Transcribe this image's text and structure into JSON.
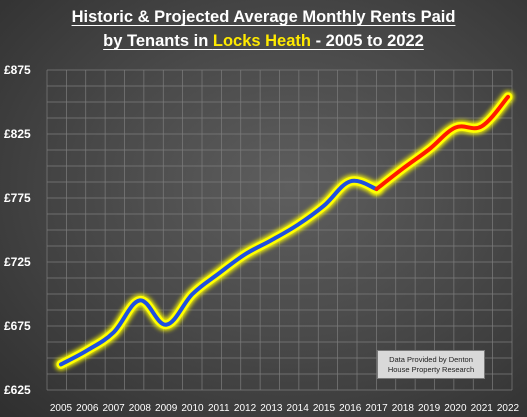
{
  "title": {
    "line1": "Historic & Projected Average Monthly Rents Paid",
    "line2_prefix": "by Tenants in ",
    "line2_highlight": "Locks Heath",
    "line2_suffix": " - 2005 to 2022"
  },
  "annotation": {
    "line1": "Data Provided by Denton",
    "line2": "House Property Research"
  },
  "colors": {
    "historic": "#1f4fe0",
    "projected": "#ff1a00",
    "glow": "#ffff00",
    "grid": "#7d7d7d"
  },
  "chart_data": {
    "type": "line",
    "title": "Historic & Projected Average Monthly Rents Paid by Tenants in Locks Heath - 2005 to 2022",
    "xlabel": "",
    "ylabel": "",
    "ylim": [
      625,
      875
    ],
    "yticks": [
      625,
      675,
      725,
      775,
      825,
      875
    ],
    "ytick_labels": [
      "£625",
      "£675",
      "£725",
      "£775",
      "£825",
      "£875"
    ],
    "grid": true,
    "x": [
      2005,
      2006,
      2007,
      2008,
      2009,
      2010,
      2011,
      2012,
      2013,
      2014,
      2015,
      2016,
      2017,
      2018,
      2019,
      2020,
      2021,
      2022
    ],
    "series": [
      {
        "name": "",
        "style": "historic",
        "x": [
          2005,
          2006,
          2007,
          2008,
          2009,
          2010,
          2011,
          2012,
          2013,
          2014,
          2015,
          2016,
          2017
        ],
        "values": [
          645,
          656,
          670,
          695,
          676,
          700,
          716,
          731,
          742,
          754,
          769,
          788,
          782
        ]
      },
      {
        "name": "",
        "style": "projected",
        "x": [
          2017,
          2018,
          2019,
          2020,
          2021,
          2022
        ],
        "values": [
          782,
          798,
          813,
          830,
          831,
          854
        ]
      }
    ]
  }
}
